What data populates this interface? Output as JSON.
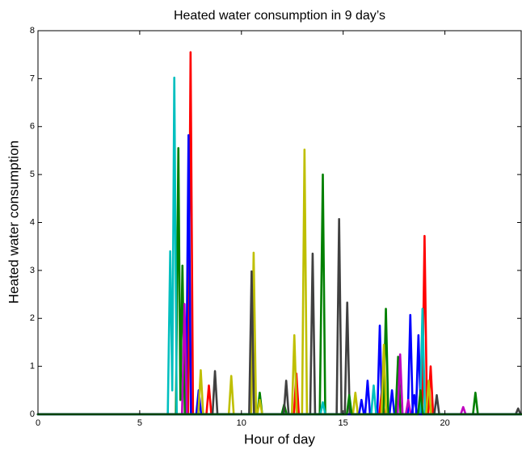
{
  "chart_data": {
    "type": "line",
    "title": "Heated water consumption in 9 day’s",
    "xlabel": "Hour of day",
    "ylabel": "Heated water consumption",
    "xlim": [
      0,
      23.75
    ],
    "ylim": [
      0,
      8
    ],
    "xticks": [
      0,
      5,
      10,
      15,
      20
    ],
    "yticks": [
      0,
      1,
      2,
      3,
      4,
      5,
      6,
      7,
      8
    ],
    "grid": false,
    "series": [
      {
        "color": "#ff0000",
        "x": [
          0,
          7.38,
          7.5,
          7.62,
          8.28,
          8.4,
          8.52,
          12.58,
          12.7,
          12.82,
          16.78,
          16.9,
          17.02,
          18.88,
          19.0,
          19.12,
          19.18,
          19.3,
          19.42,
          23.75
        ],
        "values": [
          0,
          0,
          7.55,
          0,
          0,
          0.6,
          0,
          0,
          0.85,
          0,
          0,
          0.5,
          0,
          0,
          3.72,
          0,
          0,
          1.0,
          0,
          0
        ]
      },
      {
        "color": "#0000ff",
        "x": [
          0,
          7.28,
          7.4,
          7.52,
          7.78,
          7.9,
          8.02,
          16.08,
          16.2,
          16.32,
          16.68,
          16.8,
          16.92,
          17.28,
          17.4,
          17.52,
          18.18,
          18.3,
          18.42,
          18.58,
          18.7,
          18.82,
          23.75
        ],
        "values": [
          0,
          0,
          5.82,
          0,
          0,
          0.5,
          0,
          0,
          0.7,
          0,
          0,
          1.85,
          0,
          0,
          0.5,
          0,
          0,
          2.07,
          0,
          0,
          1.65,
          0,
          0
        ]
      },
      {
        "color": "#008000",
        "x": [
          0,
          6.78,
          6.9,
          7.0,
          7.1,
          7.22,
          10.78,
          10.9,
          11.02,
          11.98,
          12.1,
          12.22,
          13.85,
          14.0,
          14.12,
          16.98,
          17.1,
          17.22,
          17.58,
          17.7,
          17.82,
          21.38,
          21.5,
          21.62,
          23.75
        ],
        "values": [
          0,
          0,
          5.55,
          0.3,
          3.1,
          0,
          0,
          0.45,
          0,
          0,
          0.2,
          0,
          0,
          5.0,
          0,
          0,
          2.2,
          0,
          0,
          1.2,
          0,
          0,
          0.45,
          0,
          0
        ]
      },
      {
        "color": "#00bfbf",
        "x": [
          0,
          6.38,
          6.5,
          6.6,
          6.7,
          6.82,
          13.88,
          14.0,
          14.12,
          16.38,
          16.5,
          16.62,
          18.78,
          18.9,
          19.02,
          23.75
        ],
        "values": [
          0,
          0,
          3.4,
          0.5,
          7.02,
          0,
          0,
          0.25,
          0,
          0,
          0.6,
          0,
          0,
          2.2,
          0,
          0
        ]
      },
      {
        "color": "#bf00bf",
        "x": [
          0,
          7.08,
          7.2,
          7.32,
          17.68,
          17.8,
          17.92,
          18.08,
          18.2,
          18.32,
          20.78,
          20.9,
          21.02,
          23.75
        ],
        "values": [
          0,
          0,
          2.3,
          0,
          0,
          1.25,
          0,
          0,
          0.3,
          0,
          0,
          0.15,
          0,
          0
        ]
      },
      {
        "color": "#bfbf00",
        "x": [
          0,
          7.88,
          8.0,
          8.12,
          9.38,
          9.5,
          9.62,
          10.48,
          10.6,
          10.72,
          10.78,
          10.9,
          11.02,
          12.48,
          12.6,
          12.72,
          12.98,
          13.1,
          13.22,
          15.48,
          15.6,
          15.72,
          16.88,
          17.0,
          17.12,
          19.08,
          19.2,
          19.32,
          23.75
        ],
        "values": [
          0,
          0,
          0.92,
          0,
          0,
          0.8,
          0,
          0,
          3.37,
          0,
          0,
          0.3,
          0,
          0,
          1.65,
          0,
          0,
          5.52,
          0,
          0,
          0.45,
          0,
          0,
          1.45,
          0,
          0,
          0.7,
          0,
          0
        ]
      },
      {
        "color": "#404040",
        "x": [
          0,
          8.58,
          8.7,
          8.82,
          10.38,
          10.5,
          10.62,
          12.08,
          12.2,
          12.32,
          13.38,
          13.5,
          13.62,
          14.68,
          14.8,
          14.92,
          15.08,
          15.2,
          15.32,
          19.48,
          19.6,
          19.72,
          23.48,
          23.6,
          23.72
        ],
        "values": [
          0,
          0,
          0.9,
          0,
          0,
          2.98,
          0,
          0,
          0.7,
          0,
          0,
          3.35,
          0,
          0,
          4.07,
          0,
          0,
          2.33,
          0,
          0,
          0.4,
          0,
          0,
          0.12,
          0
        ]
      },
      {
        "color": "#0000ff",
        "x": [
          0,
          15.78,
          15.9,
          16.02,
          18.38,
          18.5,
          18.62,
          23.75
        ],
        "values": [
          0,
          0,
          0.3,
          0,
          0,
          0.4,
          0,
          0
        ]
      },
      {
        "color": "#008000",
        "x": [
          0,
          15.18,
          15.3,
          15.42,
          18.68,
          18.8,
          18.92,
          23.75
        ],
        "values": [
          0,
          0,
          0.4,
          0,
          0,
          0.5,
          0,
          0
        ]
      }
    ]
  }
}
